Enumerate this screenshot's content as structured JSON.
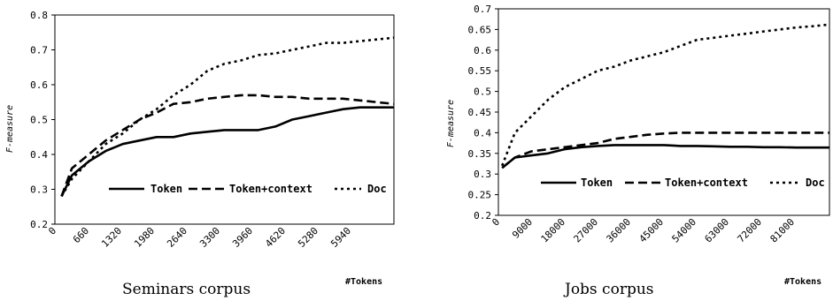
{
  "chart_data": [
    {
      "type": "line",
      "xlabel": "Seminars corpus",
      "ylabel": "F-measure",
      "x_units_label": "#Tokens",
      "x_tick_labels": [
        "0",
        "660",
        "1320",
        "1980",
        "2640",
        "3300",
        "3960",
        "4620",
        "5280",
        "5940"
      ],
      "ylim": [
        0.2,
        0.8
      ],
      "y_ticks": [
        "0.2",
        "0.3",
        "0.4",
        "0.5",
        "0.6",
        "0.7",
        "0.8"
      ],
      "legend_placement": "bottom-right",
      "x": [
        130,
        330,
        660,
        990,
        1320,
        1650,
        1980,
        2310,
        2640,
        2970,
        3300,
        3630,
        3960,
        4290,
        4620,
        4950,
        5280,
        5610,
        5940,
        6270,
        6600
      ],
      "series": [
        {
          "name": "Token",
          "style": "solid",
          "values": [
            0.28,
            0.34,
            0.38,
            0.41,
            0.43,
            0.44,
            0.45,
            0.45,
            0.46,
            0.465,
            0.47,
            0.47,
            0.47,
            0.48,
            0.5,
            0.51,
            0.52,
            0.53,
            0.535,
            0.535,
            0.535
          ]
        },
        {
          "name": "Token+context",
          "style": "dashed",
          "values": [
            0.28,
            0.36,
            0.4,
            0.44,
            0.47,
            0.5,
            0.52,
            0.545,
            0.55,
            0.56,
            0.565,
            0.57,
            0.57,
            0.565,
            0.565,
            0.56,
            0.56,
            0.56,
            0.555,
            0.55,
            0.545
          ]
        },
        {
          "name": "Doc",
          "style": "dotted",
          "values": [
            0.28,
            0.33,
            0.38,
            0.43,
            0.46,
            0.5,
            0.53,
            0.57,
            0.6,
            0.64,
            0.66,
            0.67,
            0.685,
            0.69,
            0.7,
            0.71,
            0.72,
            0.72,
            0.725,
            0.73,
            0.735
          ]
        }
      ]
    },
    {
      "type": "line",
      "xlabel": "Jobs corpus",
      "ylabel": "F-measure",
      "x_units_label": "#Tokens",
      "x_tick_labels": [
        "0",
        "9000",
        "18000",
        "27000",
        "36000",
        "45000",
        "54000",
        "63000",
        "72000",
        "81000"
      ],
      "ylim": [
        0.2,
        0.7
      ],
      "y_ticks": [
        "0.2",
        "0.25",
        "0.3",
        "0.35",
        "0.4",
        "0.45",
        "0.5",
        "0.55",
        "0.6",
        "0.65",
        "0.7"
      ],
      "legend_placement": "bottom-right",
      "x": [
        1000,
        4500,
        9000,
        13500,
        18000,
        22500,
        27000,
        31500,
        36000,
        40500,
        45000,
        49500,
        54000,
        58500,
        63000,
        67500,
        72000,
        76500,
        81000,
        85500,
        90000
      ],
      "series": [
        {
          "name": "Token",
          "style": "solid",
          "values": [
            0.315,
            0.34,
            0.345,
            0.35,
            0.36,
            0.365,
            0.368,
            0.37,
            0.37,
            0.37,
            0.37,
            0.368,
            0.368,
            0.367,
            0.366,
            0.366,
            0.365,
            0.365,
            0.364,
            0.364,
            0.364
          ]
        },
        {
          "name": "Token+context",
          "style": "dashed",
          "values": [
            0.315,
            0.34,
            0.355,
            0.36,
            0.365,
            0.37,
            0.375,
            0.385,
            0.39,
            0.395,
            0.398,
            0.4,
            0.4,
            0.4,
            0.4,
            0.4,
            0.4,
            0.4,
            0.4,
            0.4,
            0.4
          ]
        },
        {
          "name": "Doc",
          "style": "dotted",
          "values": [
            0.32,
            0.4,
            0.44,
            0.48,
            0.51,
            0.53,
            0.55,
            0.56,
            0.575,
            0.585,
            0.595,
            0.61,
            0.625,
            0.63,
            0.635,
            0.64,
            0.645,
            0.65,
            0.655,
            0.658,
            0.662
          ]
        }
      ]
    }
  ]
}
